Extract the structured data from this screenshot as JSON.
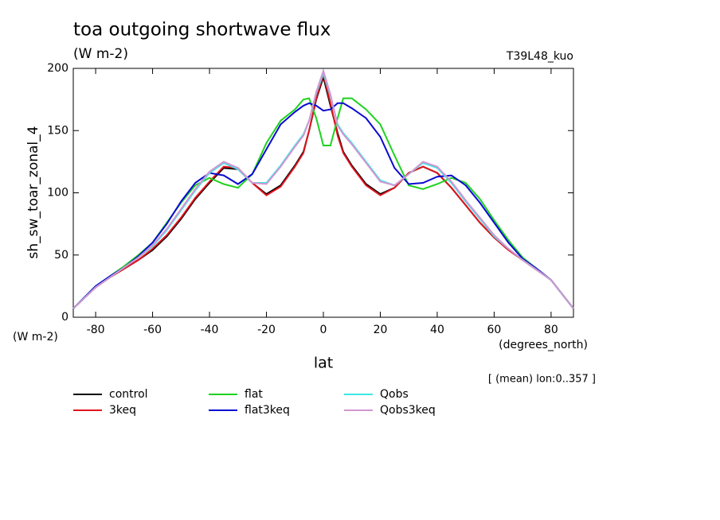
{
  "chart_data": {
    "type": "line",
    "title": "toa outgoing shortwave flux",
    "subtitle": "(W m-2)",
    "annotation": "T39L48_kuo",
    "y_label": "sh_sw_toar_zonal_4",
    "y_unit": "(W m-2)",
    "x_unit": "(degrees_north)",
    "x_label": "lat",
    "note": "[ (mean) lon:0..357 ]",
    "x": [
      -87.86,
      -80,
      -75,
      -70,
      -65,
      -60,
      -55,
      -50,
      -45,
      -40,
      -35,
      -30,
      -25,
      -20,
      -15,
      -10,
      -7,
      -5,
      -2.5,
      0,
      2.5,
      5,
      7,
      10,
      15,
      20,
      25,
      30,
      35,
      40,
      45,
      50,
      55,
      60,
      65,
      70,
      75,
      80,
      87.86
    ],
    "series": [
      {
        "name": "control",
        "color": "#000000",
        "values": [
          7,
          24,
          32,
          39,
          46,
          54,
          65,
          79,
          95,
          108,
          120,
          119,
          108,
          99,
          106,
          122,
          133,
          150,
          175,
          193,
          170,
          148,
          133,
          122,
          107,
          99,
          104,
          116,
          121,
          116,
          104,
          90,
          76,
          64,
          55,
          46,
          38,
          30,
          7
        ]
      },
      {
        "name": "3keq",
        "color": "#e0141e",
        "values": [
          7,
          24,
          32,
          39,
          46,
          55,
          66,
          80,
          96,
          109,
          121,
          120,
          108,
          98,
          105,
          121,
          132,
          150,
          176,
          195,
          172,
          146,
          132,
          121,
          106,
          98,
          104,
          116,
          121,
          116,
          104,
          90,
          76,
          64,
          54,
          46,
          38,
          30,
          7
        ]
      },
      {
        "name": "flat",
        "color": "#1ed21e",
        "values": [
          7,
          25,
          33,
          41,
          50,
          60,
          76,
          92,
          106,
          112,
          107,
          104,
          115,
          140,
          158,
          167,
          175,
          176,
          160,
          138,
          138,
          160,
          176,
          176,
          167,
          155,
          130,
          106,
          103,
          107,
          112,
          108,
          95,
          78,
          62,
          48,
          39,
          30,
          7
        ]
      },
      {
        "name": "flat3keq",
        "color": "#0a0ad2",
        "values": [
          7,
          25,
          33,
          40,
          49,
          60,
          75,
          93,
          108,
          116,
          114,
          107,
          115,
          135,
          155,
          165,
          170,
          172,
          170,
          166,
          167,
          172,
          172,
          168,
          160,
          145,
          120,
          107,
          108,
          113,
          114,
          106,
          92,
          76,
          60,
          47,
          39,
          30,
          7
        ]
      },
      {
        "name": "Qobs",
        "color": "#3ce6e6",
        "values": [
          7,
          24,
          32,
          40,
          48,
          57,
          70,
          86,
          102,
          116,
          124,
          119,
          108,
          108,
          122,
          138,
          147,
          158,
          180,
          196,
          178,
          155,
          148,
          140,
          125,
          110,
          106,
          115,
          124,
          120,
          108,
          93,
          79,
          65,
          55,
          46,
          38,
          30,
          7
        ]
      },
      {
        "name": "Qobs3keq",
        "color": "#d296d2",
        "values": [
          7,
          24,
          32,
          40,
          48,
          58,
          71,
          87,
          103,
          117,
          125,
          120,
          108,
          107,
          121,
          137,
          146,
          158,
          181,
          198,
          179,
          154,
          147,
          139,
          124,
          109,
          106,
          115,
          125,
          121,
          109,
          94,
          80,
          66,
          55,
          46,
          38,
          30,
          7
        ]
      }
    ],
    "xlim": [
      -87.86,
      87.86
    ],
    "xticks": [
      -80,
      -60,
      -40,
      -20,
      0,
      20,
      40,
      60,
      80
    ],
    "ylim": [
      0,
      200
    ],
    "yticks": [
      0,
      50,
      100,
      150,
      200
    ]
  }
}
